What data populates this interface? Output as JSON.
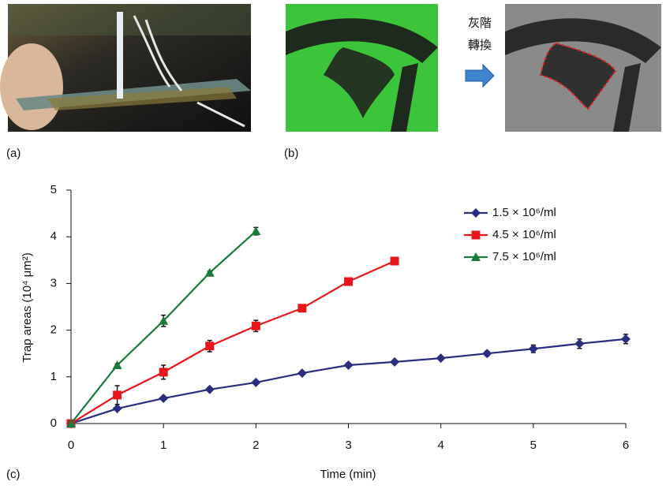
{
  "panels": {
    "a": "(a)",
    "b": "(b)",
    "c": "(c)",
    "convert_top": "灰階",
    "convert_bottom": "轉換"
  },
  "chart_data": {
    "type": "line",
    "xlabel": "Time (min)",
    "ylabel": "Trap areas (10⁴ μm²)",
    "x": [
      0,
      0.5,
      1,
      1.5,
      2,
      2.5,
      3,
      3.5,
      4,
      4.5,
      5,
      5.5,
      6
    ],
    "xlim": [
      0,
      6
    ],
    "xticks": [
      0,
      1,
      2,
      3,
      4,
      5,
      6
    ],
    "ylim": [
      0,
      5
    ],
    "yticks": [
      0,
      1,
      2,
      3,
      4,
      5
    ],
    "legend": "upper right",
    "series": [
      {
        "name": "1.5 × 10⁶/ml",
        "color": "#2b2d7e",
        "marker": "diamond",
        "values": [
          0,
          0.32,
          0.54,
          0.73,
          0.88,
          1.08,
          1.25,
          1.32,
          1.4,
          1.5,
          1.6,
          1.71,
          1.81
        ],
        "errors": [
          0,
          0.03,
          0.03,
          0.03,
          0.03,
          0.03,
          0.03,
          0.03,
          0.03,
          0.05,
          0.08,
          0.1,
          0.1
        ]
      },
      {
        "name": "4.5 × 10⁶/ml",
        "color": "#e8161b",
        "marker": "square",
        "values": [
          0,
          0.61,
          1.1,
          1.66,
          2.09,
          2.47,
          3.04,
          3.48,
          null,
          null,
          null,
          null,
          null
        ],
        "errors": [
          0,
          0.2,
          0.15,
          0.12,
          0.12,
          0.03,
          0.03,
          0.03,
          null,
          null,
          null,
          null,
          null
        ]
      },
      {
        "name": "7.5 × 10⁶/ml",
        "color": "#1a7a3c",
        "marker": "triangle",
        "values": [
          0,
          1.25,
          2.2,
          3.23,
          4.12,
          null,
          null,
          null,
          null,
          null,
          null,
          null,
          null
        ],
        "errors": [
          0,
          0.03,
          0.12,
          0.03,
          0.08,
          null,
          null,
          null,
          null,
          null,
          null,
          null,
          null
        ]
      }
    ]
  }
}
